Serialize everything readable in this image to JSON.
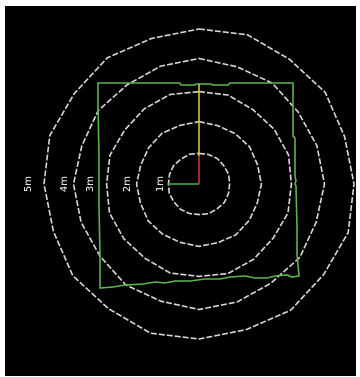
{
  "radar": {
    "rings": [
      {
        "distance_m": 1,
        "label": "1m"
      },
      {
        "distance_m": 2,
        "label": "2m"
      },
      {
        "distance_m": 3,
        "label": "3m"
      },
      {
        "distance_m": 4,
        "label": "4m"
      },
      {
        "distance_m": 5,
        "label": "5m"
      }
    ],
    "colors": {
      "background": "#000000",
      "rings": "#d8d8d8",
      "room_outline": "#5cb54a",
      "x_axis": "#4caf50",
      "y_axis": "#d8c24a",
      "origin_marker": "#c0392b"
    }
  }
}
